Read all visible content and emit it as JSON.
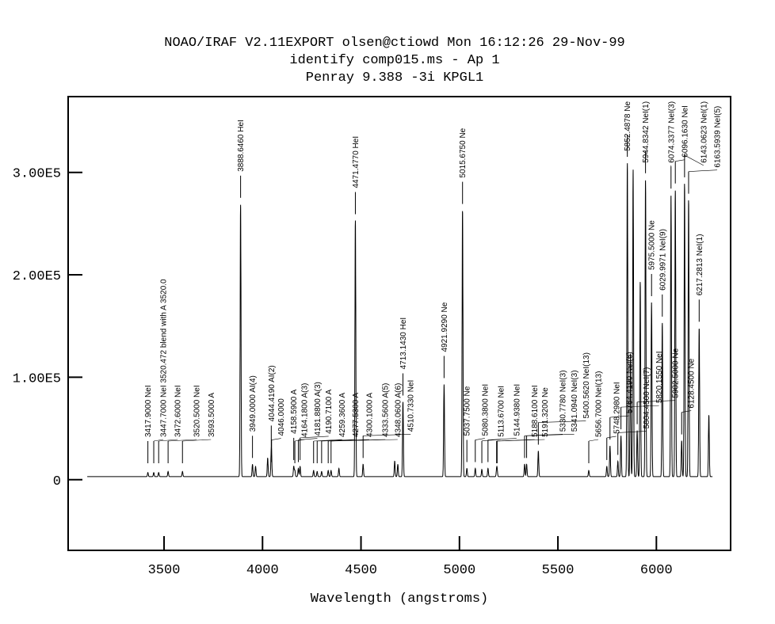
{
  "chart_data": {
    "type": "line",
    "title_lines": [
      "NOAO/IRAF V2.11EXPORT olsen@ctiowd Mon 16:12:26 29-Nov-99",
      "identify comp015.ms - Ap 1",
      "Penray 9.388 -3i KPGL1"
    ],
    "xlabel": "Wavelength (angstroms)",
    "ylabel": "",
    "xlim": [
      3013,
      6377
    ],
    "ylim": [
      -69000,
      374000
    ],
    "grid": false,
    "x_ticks": [
      3500,
      4000,
      4500,
      5000,
      5500,
      6000
    ],
    "x_tick_labels": [
      "3500",
      "4000",
      "4500",
      "5000",
      "5500",
      "6000"
    ],
    "y_ticks": [
      0,
      100000,
      200000,
      300000
    ],
    "y_tick_labels": [
      "0",
      "1.00E5",
      "2.00E5",
      "3.00E5"
    ],
    "spectrum_range": [
      3110,
      6285
    ],
    "baseline": 3000,
    "identified_lines": [
      {
        "w": 3417.9,
        "peak": 4000,
        "label": "3417.9000 NeI"
      },
      {
        "w": 3447.7,
        "peak": 4000,
        "label": "3447.7000 NeI 3520.472 blend with A 3520.0"
      },
      {
        "w": 3472.6,
        "peak": 4000,
        "label": "3472.6000 NeI"
      },
      {
        "w": 3520.5,
        "peak": 5000,
        "label": "3520.5000 NeI"
      },
      {
        "w": 3593.5,
        "peak": 5000,
        "label": "3593.5000 A"
      },
      {
        "w": 3888.646,
        "peak": 266000,
        "label": "3888.6460 HeI"
      },
      {
        "w": 3949.0,
        "peak": 12000,
        "label": "3949.0000 AI(4)"
      },
      {
        "w": 4044.419,
        "peak": 22000,
        "label": "4044.4190 AI(2)"
      },
      {
        "w": 4046.0,
        "peak": 8000,
        "label": "4046.0000"
      },
      {
        "w": 4158.59,
        "peak": 10000,
        "label": "4158.5900 A"
      },
      {
        "w": 4164.18,
        "peak": 6000,
        "label": "4164.1800 A(3)"
      },
      {
        "w": 4181.88,
        "peak": 8000,
        "label": "4181.8800 A(3)"
      },
      {
        "w": 4190.71,
        "peak": 10000,
        "label": "4190.7100 A"
      },
      {
        "w": 4259.36,
        "peak": 6000,
        "label": "4259.3600 A"
      },
      {
        "w": 4277.53,
        "peak": 5000,
        "label": "4277.5300 A"
      },
      {
        "w": 4300.1,
        "peak": 5000,
        "label": "4300.1000 A"
      },
      {
        "w": 4333.56,
        "peak": 6000,
        "label": "4333.5600 A(5)"
      },
      {
        "w": 4348.06,
        "peak": 6000,
        "label": "4348.0600 A(6)"
      },
      {
        "w": 4471.477,
        "peak": 250000,
        "label": "4471.4770 HeI"
      },
      {
        "w": 4510.733,
        "peak": 12000,
        "label": "4510.7330 NeI"
      },
      {
        "w": 4713.143,
        "peak": 73000,
        "label": "4713.1430 HeI"
      },
      {
        "w": 4921.929,
        "peak": 90000,
        "label": "4921.9290 Ne"
      },
      {
        "w": 5015.675,
        "peak": 260000,
        "label": "5015.6750 Ne"
      },
      {
        "w": 5037.75,
        "peak": 8000,
        "label": "5037.7500 Ne"
      },
      {
        "w": 5080.38,
        "peak": 8000,
        "label": "5080.3800 NeI"
      },
      {
        "w": 5113.67,
        "peak": 7000,
        "label": "5113.6700 NeI"
      },
      {
        "w": 5144.938,
        "peak": 8000,
        "label": "5144.9380 NeI"
      },
      {
        "w": 5188.61,
        "peak": 6000,
        "label": "5188.6100 NeI"
      },
      {
        "w": 5191.32,
        "peak": 6000,
        "label": "5191.3200 Ne"
      },
      {
        "w": 5330.778,
        "peak": 12000,
        "label": "5330.7780 NeI(3)"
      },
      {
        "w": 5341.094,
        "peak": 12000,
        "label": "5341.0940 NeI(3)"
      },
      {
        "w": 5400.562,
        "peak": 25000,
        "label": "5400.5620 NeI(13)"
      },
      {
        "w": 5656.7,
        "peak": 6000,
        "label": "5656.7000 NeI(13)"
      },
      {
        "w": 5748.298,
        "peak": 10000,
        "label": "5748.2980 NeI"
      },
      {
        "w": 5764.419,
        "peak": 30000,
        "label": "5764.4190 NeI(6)"
      },
      {
        "w": 5804.45,
        "peak": 15000,
        "label": "5804.4500 NeI(7)"
      },
      {
        "w": 5820.155,
        "peak": 40000,
        "label": "5820.1550 NeI"
      },
      {
        "w": 5852.4878,
        "peak": 306000,
        "label": "5852.4878 Ne"
      },
      {
        "w": 5902.5,
        "peak": 45000,
        "label": "5902.5000 Ne"
      },
      {
        "w": 5944.8342,
        "peak": 290000,
        "label": "5944.8342 NeI(1)"
      },
      {
        "w": 5975.5,
        "peak": 170000,
        "label": "5975.5000 Ne"
      },
      {
        "w": 6029.9971,
        "peak": 150000,
        "label": "6029.9971 NeI(9)"
      },
      {
        "w": 6074.3377,
        "peak": 275000,
        "label": "6074.3377 NeI(3)"
      },
      {
        "w": 6096.163,
        "peak": 280000,
        "label": "6096.1630 NeI"
      },
      {
        "w": 6128.45,
        "peak": 35000,
        "label": "6128.4500 Ne"
      },
      {
        "w": 6143.0623,
        "peak": 286000,
        "label": "6143.0623 NeI(1)"
      },
      {
        "w": 6163.5939,
        "peak": 270000,
        "label": "6163.5939 NeI(5)"
      },
      {
        "w": 6217.2813,
        "peak": 145000,
        "label": "6217.2813 NeI(1)"
      }
    ],
    "unlabeled_lines": [
      {
        "w": 3964.7,
        "peak": 10000
      },
      {
        "w": 4026.2,
        "peak": 18000
      },
      {
        "w": 4387.9,
        "peak": 8000
      },
      {
        "w": 4671.2,
        "peak": 15000
      },
      {
        "w": 4687.0,
        "peak": 12000
      },
      {
        "w": 5881.895,
        "peak": 300000
      },
      {
        "w": 5868.0,
        "peak": 120000
      },
      {
        "w": 5918.0,
        "peak": 190000
      },
      {
        "w": 6266.495,
        "peak": 60000
      }
    ]
  }
}
